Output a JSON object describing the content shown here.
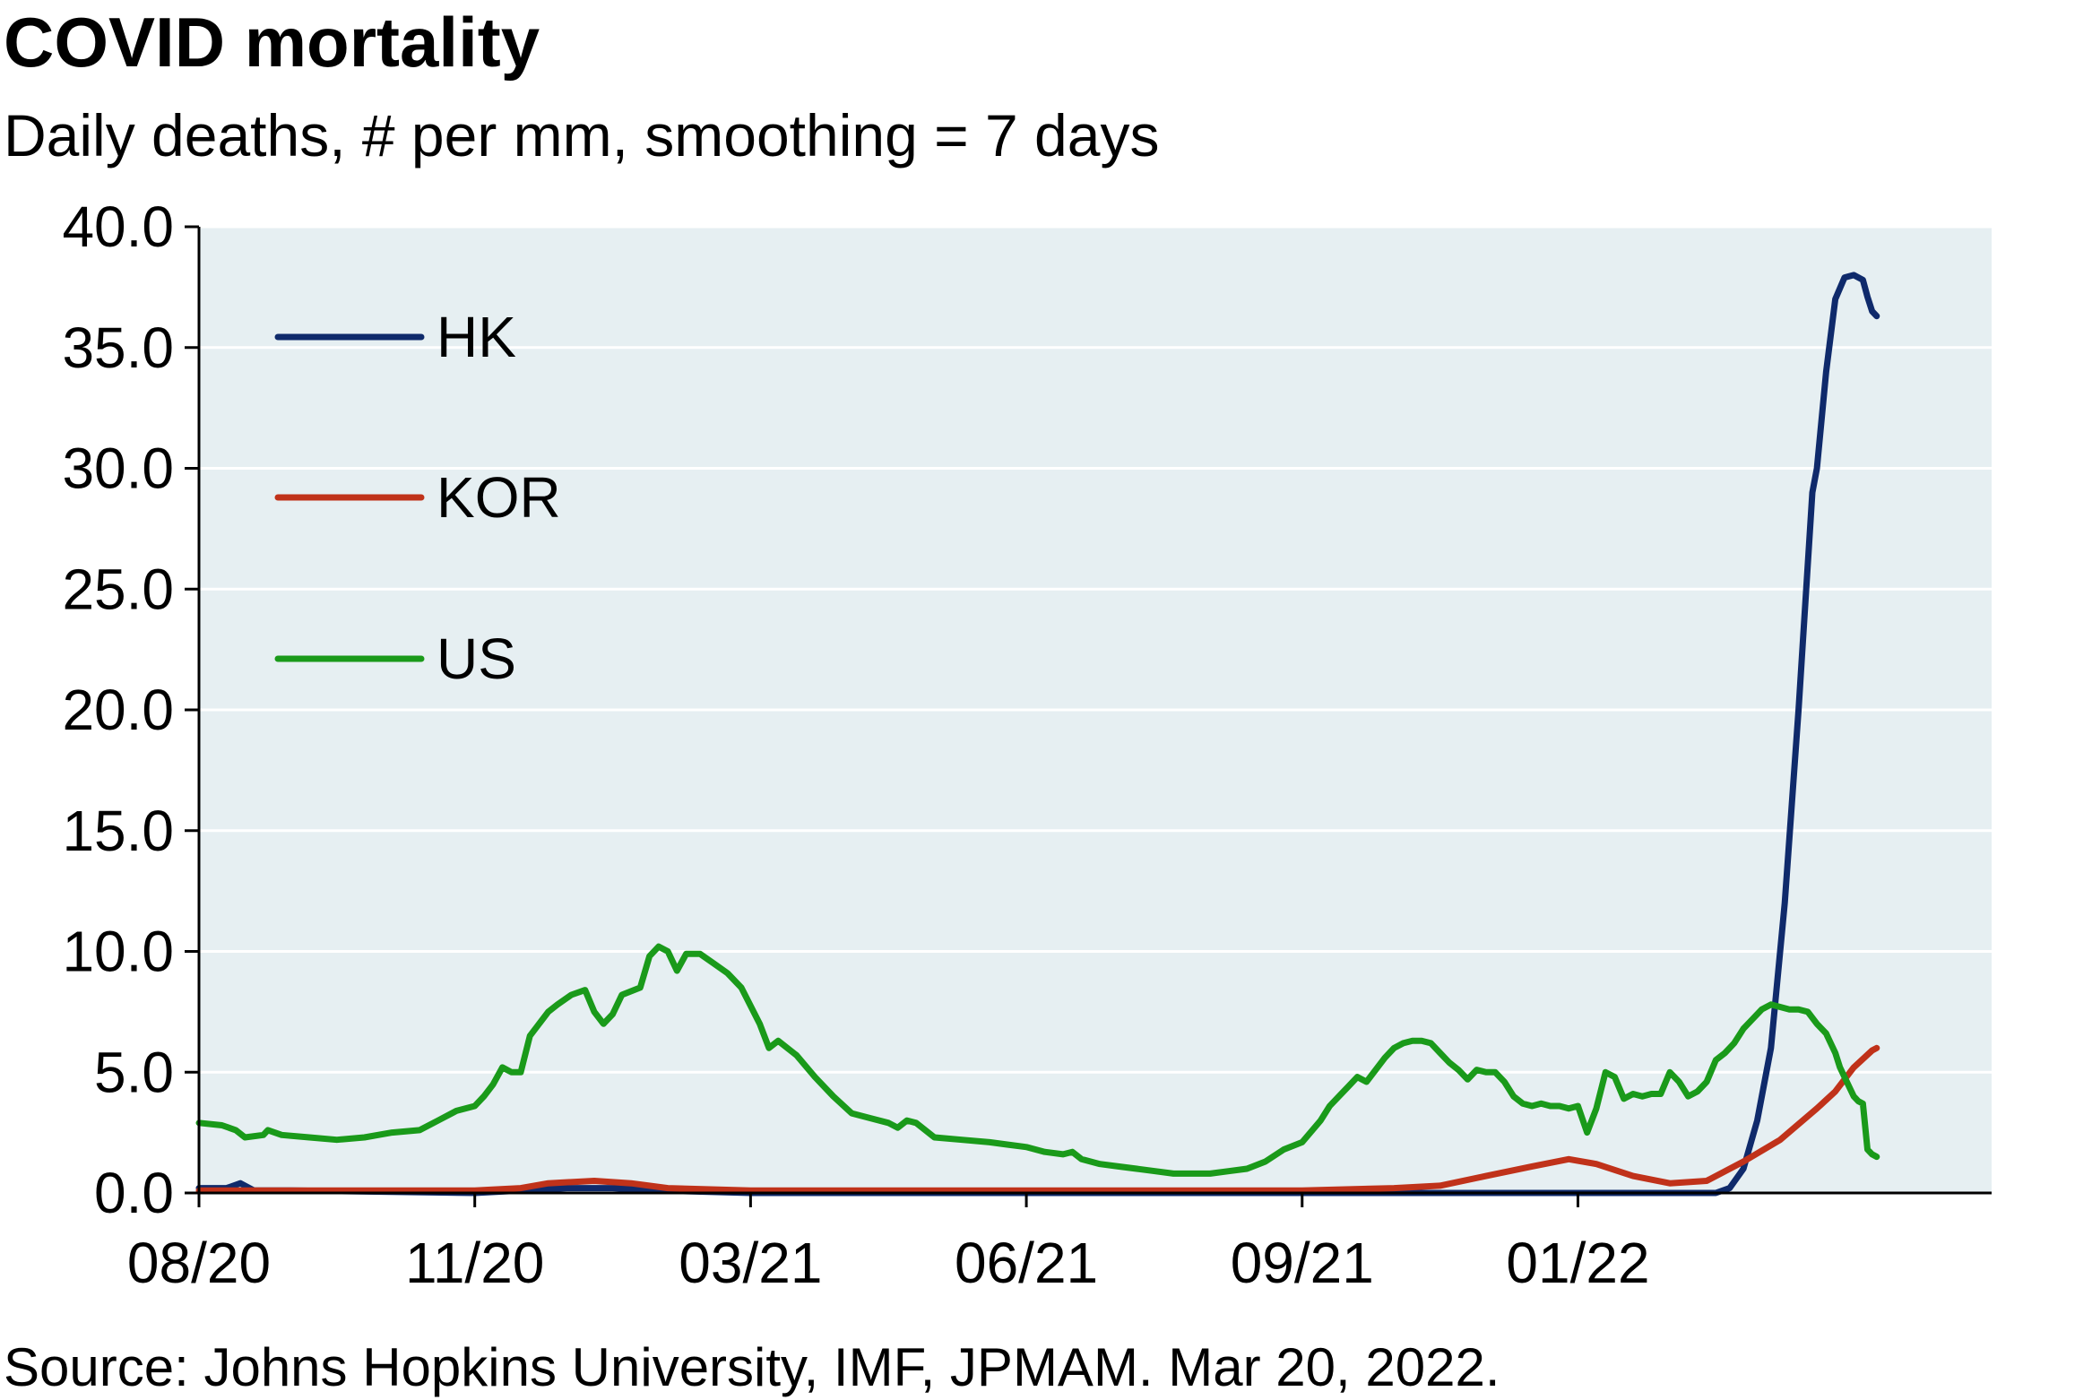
{
  "title": "COVID mortality",
  "subtitle": "Daily deaths, # per mm, smoothing = 7 days",
  "source": "Source: Johns Hopkins University, IMF, JPMAM. Mar 20, 2022.",
  "colors": {
    "plot_bg": "#e6eff2",
    "grid": "#ffffff",
    "axis": "#000000"
  },
  "chart_data": {
    "type": "line",
    "x_unit": "month index (0 = 08/20)",
    "xlim": [
      0,
      19.5
    ],
    "ylim": [
      0,
      40
    ],
    "y_ticks": [
      "0.0",
      "5.0",
      "10.0",
      "15.0",
      "20.0",
      "25.0",
      "30.0",
      "35.0",
      "40.0"
    ],
    "x_ticks": [
      {
        "label": "08/20",
        "x": 0
      },
      {
        "label": "11/20",
        "x": 3
      },
      {
        "label": "03/21",
        "x": 6
      },
      {
        "label": "06/21",
        "x": 9
      },
      {
        "label": "09/21",
        "x": 12
      },
      {
        "label": "01/22",
        "x": 15
      }
    ],
    "grid": true,
    "legend_position": "top-left",
    "series": [
      {
        "name": "HK",
        "color": "#0f2a6b",
        "points": [
          [
            0,
            0.2
          ],
          [
            0.3,
            0.2
          ],
          [
            0.45,
            0.4
          ],
          [
            0.6,
            0.1
          ],
          [
            1,
            0.1
          ],
          [
            3,
            0
          ],
          [
            4,
            0.2
          ],
          [
            4.5,
            0.2
          ],
          [
            5,
            0.1
          ],
          [
            6,
            0
          ],
          [
            16,
            0
          ],
          [
            16.5,
            0
          ],
          [
            16.65,
            0.2
          ],
          [
            16.8,
            1
          ],
          [
            16.95,
            3
          ],
          [
            17.1,
            6
          ],
          [
            17.25,
            12
          ],
          [
            17.4,
            20
          ],
          [
            17.55,
            29
          ],
          [
            17.6,
            30
          ],
          [
            17.7,
            34
          ],
          [
            17.8,
            37
          ],
          [
            17.9,
            37.9
          ],
          [
            18.0,
            38.0
          ],
          [
            18.1,
            37.8
          ],
          [
            18.15,
            37.1
          ],
          [
            18.2,
            36.5
          ],
          [
            18.25,
            36.3
          ]
        ]
      },
      {
        "name": "KOR",
        "color": "#c0321a",
        "points": [
          [
            0,
            0.1
          ],
          [
            3,
            0.1
          ],
          [
            3.5,
            0.2
          ],
          [
            3.8,
            0.4
          ],
          [
            4.3,
            0.5
          ],
          [
            4.7,
            0.4
          ],
          [
            5.1,
            0.2
          ],
          [
            6,
            0.1
          ],
          [
            9,
            0.1
          ],
          [
            11,
            0.1
          ],
          [
            12,
            0.1
          ],
          [
            13,
            0.2
          ],
          [
            13.5,
            0.3
          ],
          [
            14,
            0.7
          ],
          [
            14.5,
            1.1
          ],
          [
            14.9,
            1.4
          ],
          [
            15.2,
            1.2
          ],
          [
            15.6,
            0.7
          ],
          [
            16,
            0.4
          ],
          [
            16.4,
            0.5
          ],
          [
            16.8,
            1.3
          ],
          [
            17.2,
            2.2
          ],
          [
            17.6,
            3.5
          ],
          [
            17.8,
            4.2
          ],
          [
            18.0,
            5.2
          ],
          [
            18.2,
            5.9
          ],
          [
            18.25,
            6.0
          ]
        ]
      },
      {
        "name": "US",
        "color": "#1a9a1a",
        "points": [
          [
            0,
            2.9
          ],
          [
            0.25,
            2.8
          ],
          [
            0.4,
            2.6
          ],
          [
            0.5,
            2.3
          ],
          [
            0.7,
            2.4
          ],
          [
            0.75,
            2.6
          ],
          [
            0.9,
            2.4
          ],
          [
            1.2,
            2.3
          ],
          [
            1.5,
            2.2
          ],
          [
            1.8,
            2.3
          ],
          [
            2.1,
            2.5
          ],
          [
            2.4,
            2.6
          ],
          [
            2.6,
            3.0
          ],
          [
            2.8,
            3.4
          ],
          [
            3.0,
            3.6
          ],
          [
            3.1,
            4.0
          ],
          [
            3.2,
            4.5
          ],
          [
            3.3,
            5.2
          ],
          [
            3.4,
            5.0
          ],
          [
            3.5,
            5.0
          ],
          [
            3.6,
            6.5
          ],
          [
            3.7,
            7.0
          ],
          [
            3.8,
            7.5
          ],
          [
            3.9,
            7.8
          ],
          [
            4.05,
            8.2
          ],
          [
            4.2,
            8.4
          ],
          [
            4.3,
            7.5
          ],
          [
            4.4,
            7.0
          ],
          [
            4.5,
            7.4
          ],
          [
            4.6,
            8.2
          ],
          [
            4.8,
            8.5
          ],
          [
            4.9,
            9.8
          ],
          [
            5.0,
            10.2
          ],
          [
            5.1,
            10.0
          ],
          [
            5.2,
            9.2
          ],
          [
            5.3,
            9.9
          ],
          [
            5.45,
            9.9
          ],
          [
            5.6,
            9.5
          ],
          [
            5.75,
            9.1
          ],
          [
            5.9,
            8.5
          ],
          [
            6.1,
            7.0
          ],
          [
            6.2,
            6.0
          ],
          [
            6.3,
            6.3
          ],
          [
            6.5,
            5.7
          ],
          [
            6.7,
            4.8
          ],
          [
            6.9,
            4.0
          ],
          [
            7.1,
            3.3
          ],
          [
            7.3,
            3.1
          ],
          [
            7.5,
            2.9
          ],
          [
            7.6,
            2.7
          ],
          [
            7.7,
            3.0
          ],
          [
            7.8,
            2.9
          ],
          [
            8.0,
            2.3
          ],
          [
            8.3,
            2.2
          ],
          [
            8.6,
            2.1
          ],
          [
            8.8,
            2.0
          ],
          [
            9.0,
            1.9
          ],
          [
            9.2,
            1.7
          ],
          [
            9.4,
            1.6
          ],
          [
            9.5,
            1.7
          ],
          [
            9.6,
            1.4
          ],
          [
            9.8,
            1.2
          ],
          [
            10.0,
            1.1
          ],
          [
            10.2,
            1.0
          ],
          [
            10.4,
            0.9
          ],
          [
            10.6,
            0.8
          ],
          [
            10.8,
            0.8
          ],
          [
            11.0,
            0.8
          ],
          [
            11.2,
            0.9
          ],
          [
            11.4,
            1.0
          ],
          [
            11.6,
            1.3
          ],
          [
            11.8,
            1.8
          ],
          [
            12.0,
            2.1
          ],
          [
            12.2,
            3.0
          ],
          [
            12.3,
            3.6
          ],
          [
            12.4,
            4.0
          ],
          [
            12.5,
            4.4
          ],
          [
            12.6,
            4.8
          ],
          [
            12.7,
            4.6
          ],
          [
            12.8,
            5.1
          ],
          [
            12.9,
            5.6
          ],
          [
            13.0,
            6.0
          ],
          [
            13.1,
            6.2
          ],
          [
            13.2,
            6.3
          ],
          [
            13.3,
            6.3
          ],
          [
            13.4,
            6.2
          ],
          [
            13.5,
            5.8
          ],
          [
            13.6,
            5.4
          ],
          [
            13.7,
            5.1
          ],
          [
            13.8,
            4.7
          ],
          [
            13.9,
            5.1
          ],
          [
            14.0,
            5.0
          ],
          [
            14.1,
            5.0
          ],
          [
            14.2,
            4.6
          ],
          [
            14.3,
            4.0
          ],
          [
            14.4,
            3.7
          ],
          [
            14.5,
            3.6
          ],
          [
            14.6,
            3.7
          ],
          [
            14.7,
            3.6
          ],
          [
            14.8,
            3.6
          ],
          [
            14.9,
            3.5
          ],
          [
            15.0,
            3.6
          ],
          [
            15.1,
            2.5
          ],
          [
            15.2,
            3.5
          ],
          [
            15.3,
            5.0
          ],
          [
            15.4,
            4.8
          ],
          [
            15.5,
            3.9
          ],
          [
            15.6,
            4.1
          ],
          [
            15.7,
            4.0
          ],
          [
            15.8,
            4.1
          ],
          [
            15.9,
            4.1
          ],
          [
            16.0,
            5.0
          ],
          [
            16.1,
            4.6
          ],
          [
            16.2,
            4.0
          ],
          [
            16.3,
            4.2
          ],
          [
            16.4,
            4.6
          ],
          [
            16.5,
            5.5
          ],
          [
            16.6,
            5.8
          ],
          [
            16.7,
            6.2
          ],
          [
            16.8,
            6.8
          ],
          [
            16.9,
            7.2
          ],
          [
            17.0,
            7.6
          ],
          [
            17.1,
            7.8
          ],
          [
            17.2,
            7.7
          ],
          [
            17.3,
            7.6
          ],
          [
            17.4,
            7.6
          ],
          [
            17.5,
            7.5
          ],
          [
            17.6,
            7.0
          ],
          [
            17.7,
            6.6
          ],
          [
            17.8,
            5.8
          ],
          [
            17.85,
            5.2
          ],
          [
            17.9,
            4.8
          ],
          [
            18.0,
            4.0
          ],
          [
            18.05,
            3.8
          ],
          [
            18.1,
            3.7
          ],
          [
            18.15,
            1.8
          ],
          [
            18.2,
            1.6
          ],
          [
            18.25,
            1.5
          ]
        ]
      }
    ]
  }
}
